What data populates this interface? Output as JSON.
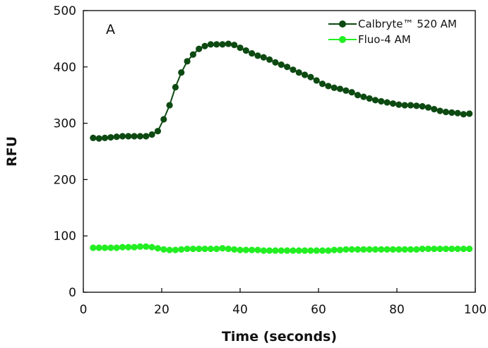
{
  "chart_data": {
    "type": "line",
    "panel_label": "A",
    "xlabel": "Time (seconds)",
    "ylabel": "RFU",
    "xlim": [
      0,
      100
    ],
    "ylim": [
      0,
      500
    ],
    "xticks": [
      0,
      20,
      40,
      60,
      80,
      100
    ],
    "yticks": [
      0,
      100,
      200,
      300,
      400,
      500
    ],
    "grid": false,
    "legend_position": "top-right",
    "x": [
      2.5,
      4,
      5.5,
      7,
      8.5,
      10,
      11.5,
      13,
      14.5,
      16,
      17.5,
      19,
      20.5,
      22,
      23.5,
      25,
      26.5,
      28,
      29.5,
      31,
      32.5,
      34,
      35.5,
      37,
      38.5,
      40,
      41.5,
      43,
      44.5,
      46,
      47.5,
      49,
      50.5,
      52,
      53.5,
      55,
      56.5,
      58,
      59.5,
      61,
      62.5,
      64,
      65.5,
      67,
      68.5,
      70,
      71.5,
      73,
      74.5,
      76,
      77.5,
      79,
      80.5,
      82,
      83.5,
      85,
      86.5,
      88,
      89.5,
      91,
      92.5,
      94,
      95.5,
      97,
      98.5
    ],
    "series": [
      {
        "name": "Calbryte™ 520 AM",
        "color": "#0d4a12",
        "values": [
          274,
          273,
          274,
          275,
          276,
          277,
          277,
          277,
          277,
          277,
          280,
          286,
          307,
          332,
          364,
          390,
          410,
          422,
          432,
          437,
          440,
          440,
          440,
          441,
          439,
          434,
          429,
          424,
          420,
          417,
          413,
          408,
          404,
          400,
          395,
          390,
          386,
          382,
          376,
          370,
          366,
          363,
          361,
          358,
          355,
          350,
          347,
          344,
          341,
          339,
          337,
          335,
          333,
          332,
          332,
          331,
          330,
          328,
          325,
          322,
          320,
          319,
          318,
          316,
          317
        ]
      },
      {
        "name": "Fluo-4 AM",
        "color": "#22ee22",
        "values": [
          79,
          79,
          79,
          79,
          79,
          80,
          80,
          80,
          81,
          81,
          80,
          78,
          76,
          75,
          75,
          76,
          77,
          77,
          77,
          77,
          77,
          77,
          78,
          77,
          76,
          75,
          75,
          75,
          75,
          74,
          74,
          74,
          74,
          74,
          74,
          74,
          74,
          74,
          74,
          74,
          74,
          75,
          75,
          76,
          76,
          76,
          76,
          76,
          76,
          76,
          76,
          76,
          76,
          76,
          76,
          76,
          77,
          77,
          77,
          77,
          77,
          77,
          77,
          77,
          77
        ]
      }
    ]
  }
}
